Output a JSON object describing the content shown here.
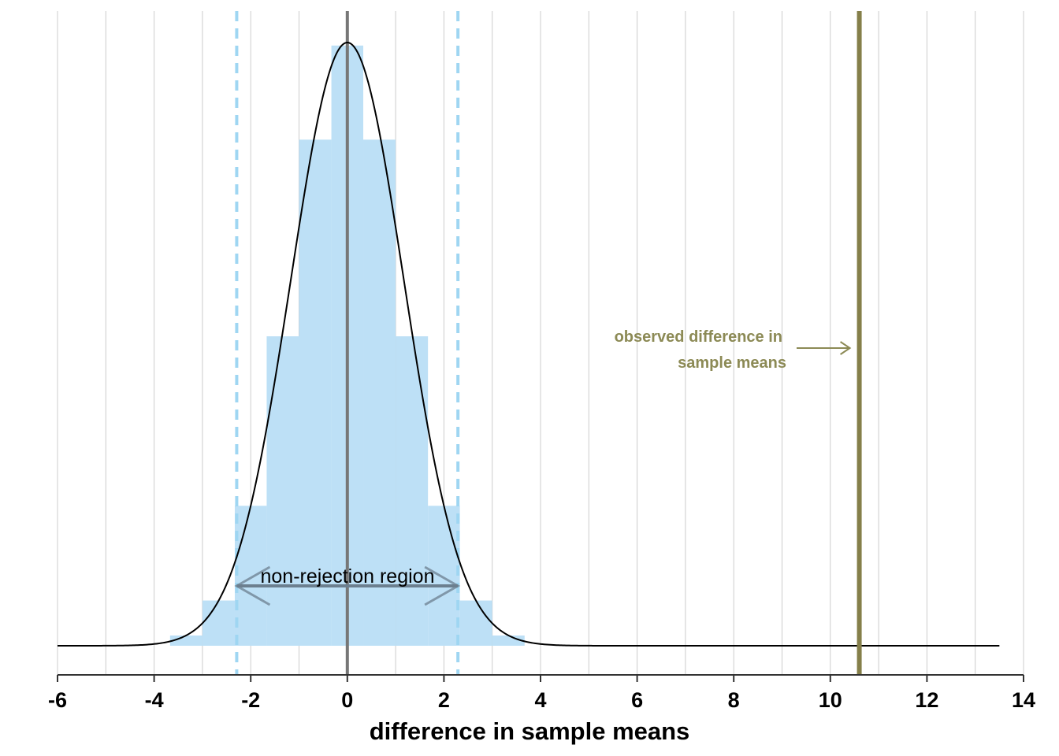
{
  "chart_data": {
    "type": "bar",
    "title": "",
    "xlabel": "difference in sample means",
    "ylabel": "",
    "xlim": [
      -6,
      14
    ],
    "ylim": [
      0,
      1
    ],
    "x_ticks": [
      -6,
      -4,
      -2,
      0,
      2,
      4,
      6,
      8,
      10,
      12,
      14
    ],
    "x_tick_labels": [
      "-6",
      "-4",
      "-2",
      "0",
      "2",
      "4",
      "6",
      "8",
      "10",
      "12",
      "14"
    ],
    "minor_gridlines": [
      -5,
      -3,
      -1,
      1,
      3,
      5,
      7,
      9,
      11,
      13
    ],
    "histogram": {
      "bin_edges": [
        -3.67,
        -3.0,
        -2.33,
        -1.67,
        -1.0,
        -0.33,
        0.33,
        1.0,
        1.67,
        2.33,
        3.0,
        3.67
      ],
      "heights": [
        0.017,
        0.075,
        0.232,
        0.513,
        0.839,
        0.995,
        0.839,
        0.513,
        0.232,
        0.075,
        0.017
      ],
      "color": "#bde0f6"
    },
    "density_curve": {
      "distribution": "normal",
      "mean": 0,
      "sd": 1.17,
      "x_range": [
        -6,
        13.5
      ],
      "color": "#000000"
    },
    "null_mean_line": {
      "x": 0,
      "color": "#777777"
    },
    "critical_values": {
      "lower": -2.29,
      "upper": 2.29,
      "color": "#9fd6f2",
      "style": "dashed"
    },
    "observed_line": {
      "x": 10.6,
      "color": "#857f4a"
    },
    "annotations": {
      "observed_label_line1": "observed difference in",
      "observed_label_line2": "sample means",
      "observed_color": "#8c8a55",
      "region_label": "non-rejection region",
      "region_from": -2.29,
      "region_to": 2.29,
      "region_arrow_color": "#6c7f8f"
    },
    "colors": {
      "gridline": "#cccccc",
      "axis": "#333333"
    }
  }
}
